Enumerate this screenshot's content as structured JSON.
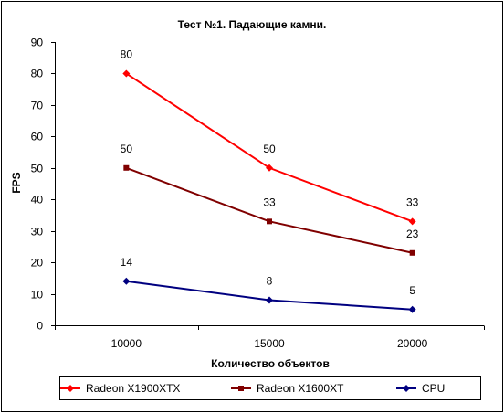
{
  "chart_data": {
    "type": "line",
    "title": "Тест №1. Падающие камни.",
    "xlabel": "Количество объектов",
    "ylabel": "FPS",
    "categories": [
      "10000",
      "15000",
      "20000"
    ],
    "ylim": [
      0,
      90
    ],
    "yticks": [
      0,
      10,
      20,
      30,
      40,
      50,
      60,
      70,
      80,
      90
    ],
    "grid": false,
    "legend_position": "bottom",
    "series": [
      {
        "name": "Radeon X1900XTX",
        "values": [
          80,
          50,
          33
        ],
        "color": "#ff0000",
        "marker": "diamond"
      },
      {
        "name": "Radeon X1600XT",
        "values": [
          50,
          33,
          23
        ],
        "color": "#800000",
        "marker": "square"
      },
      {
        "name": "CPU",
        "values": [
          14,
          8,
          5
        ],
        "color": "#000080",
        "marker": "diamond"
      }
    ]
  }
}
